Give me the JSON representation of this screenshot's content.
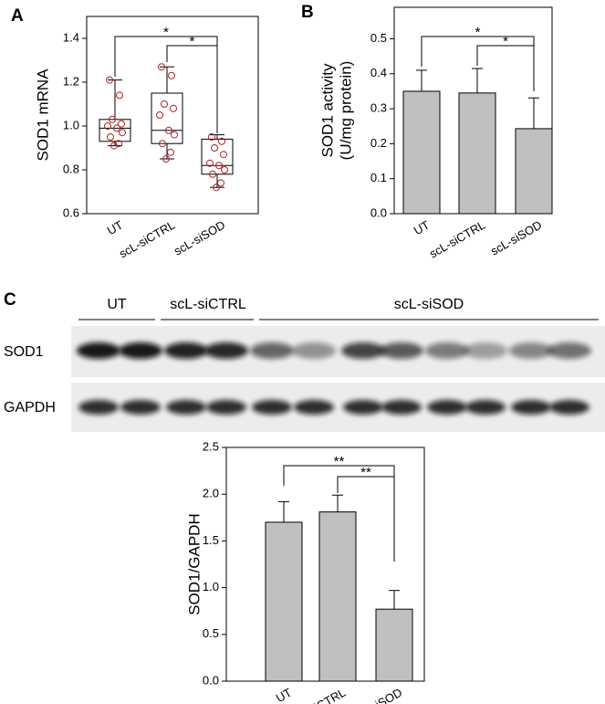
{
  "chart_data": [
    {
      "type": "box",
      "panel_label": "A",
      "ylabel": [
        "SOD1 mRNA"
      ],
      "categories": [
        "UT",
        "scL-siCTRL",
        "scL-siSOD"
      ],
      "boxes": [
        {
          "whisker_low": 0.91,
          "q1": 0.93,
          "median": 0.99,
          "q3": 1.03,
          "whisker_high": 1.21,
          "points": [
            1.21,
            1.14,
            1.03,
            1.01,
            1.0,
            0.99,
            0.97,
            0.95,
            0.92,
            0.91
          ]
        },
        {
          "whisker_low": 0.85,
          "q1": 0.92,
          "median": 0.98,
          "q3": 1.15,
          "whisker_high": 1.27,
          "points": [
            1.27,
            1.23,
            1.1,
            1.08,
            1.05,
            0.98,
            0.96,
            0.92,
            0.88,
            0.85
          ]
        },
        {
          "whisker_low": 0.72,
          "q1": 0.78,
          "median": 0.82,
          "q3": 0.94,
          "whisker_high": 0.96,
          "points": [
            0.95,
            0.93,
            0.9,
            0.87,
            0.83,
            0.82,
            0.8,
            0.78,
            0.74,
            0.72
          ]
        }
      ],
      "box_color": "#000000",
      "point_color": "#b22222",
      "ylim": [
        0.6,
        1.5
      ],
      "yticks": [
        0.6,
        0.8,
        {
          "value": 1,
          "label": "1.0"
        },
        1.2,
        1.4
      ],
      "annotations": [
        "*",
        "*"
      ]
    },
    {
      "type": "bar",
      "panel_label": "B",
      "ylabel": [
        "SOD1 activity",
        "(U/mg protein)"
      ],
      "categories": [
        "UT",
        "scL-siCTRL",
        "scL-siSOD"
      ],
      "values": [
        0.35,
        0.345,
        0.243
      ],
      "errors": [
        0.06,
        0.07,
        0.088
      ],
      "color": "#c0c0c0",
      "ylim": [
        0,
        0.59
      ],
      "yticks": [
        {
          "value": 0,
          "label": "0.0"
        },
        0.1,
        0.2,
        0.3,
        0.4,
        0.5
      ],
      "annotations": [
        "*",
        "*"
      ]
    },
    {
      "type": "bar",
      "ylabel": [
        "SOD1/GAPDH"
      ],
      "categories": [
        "UT",
        "scL-siCTRL",
        "scL-siSOD"
      ],
      "values": [
        1.7,
        1.81,
        0.77
      ],
      "errors": [
        0.22,
        0.18,
        0.2
      ],
      "color": "#c0c0c0",
      "ylim": [
        0,
        2.5
      ],
      "yticks": [
        {
          "value": 0,
          "label": "0.0"
        },
        0.5,
        {
          "value": 1,
          "label": "1.0"
        },
        1.5,
        {
          "value": 2,
          "label": "2.0"
        },
        2.5
      ],
      "annotations": [
        "**",
        "**"
      ]
    }
  ],
  "blot": {
    "panel_label": "C",
    "group_labels": [
      "UT",
      "scL-siCTRL",
      "scL-siSOD"
    ],
    "row_labels": [
      "SOD1",
      "GAPDH"
    ]
  }
}
